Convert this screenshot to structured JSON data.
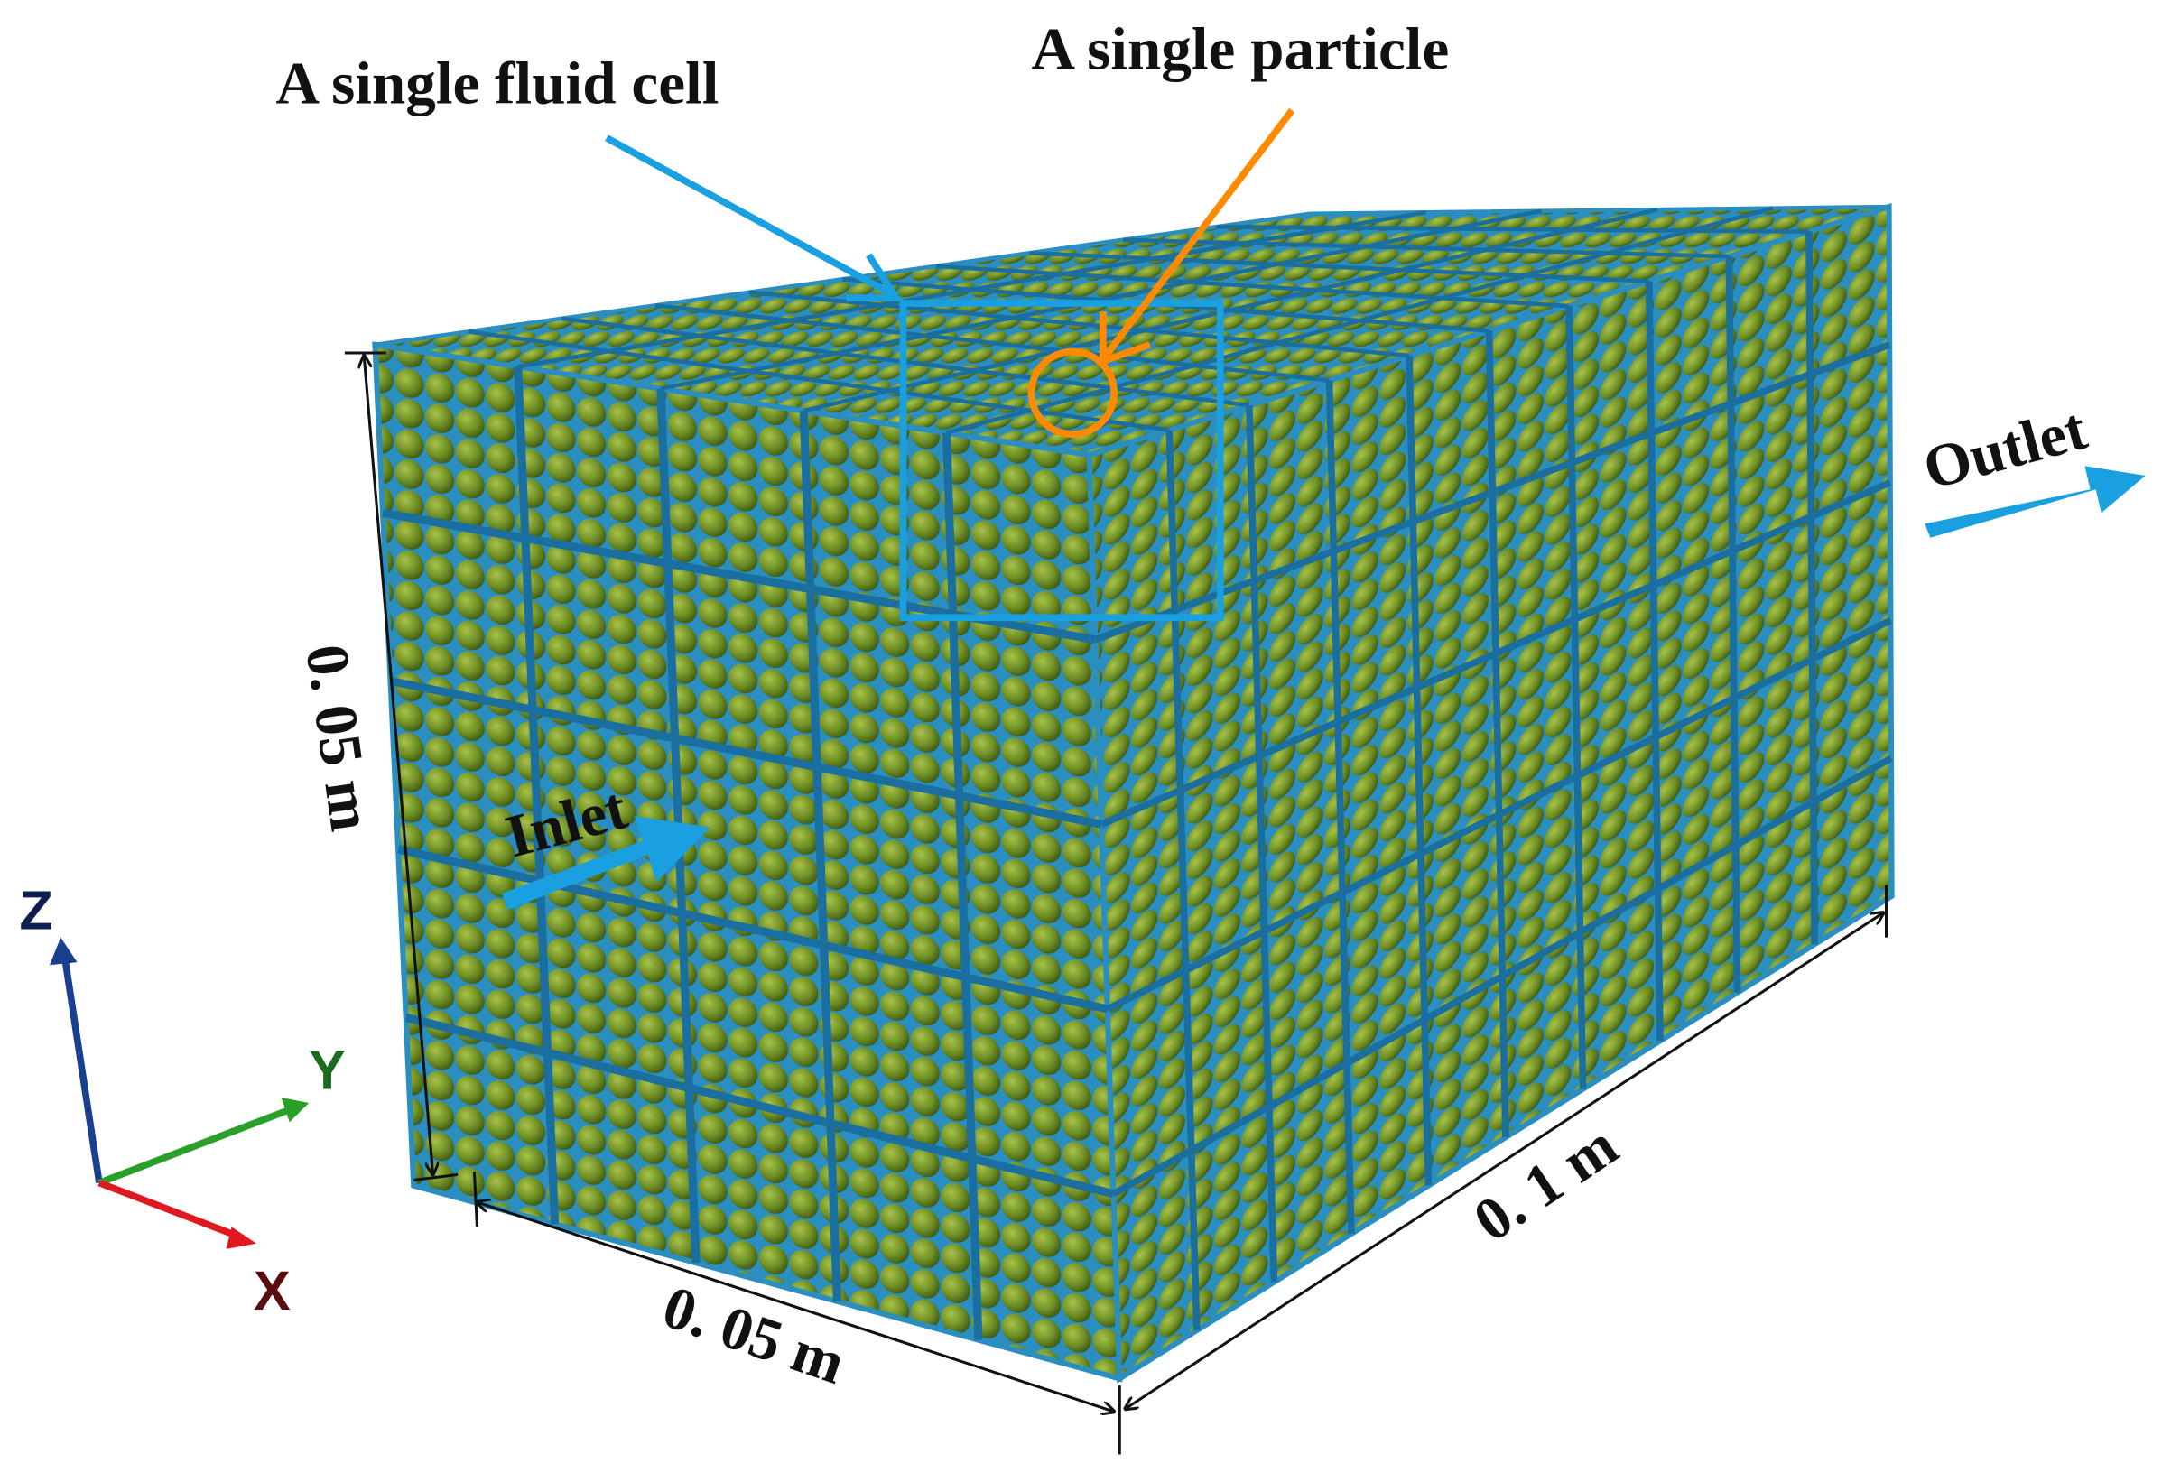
{
  "labels": {
    "fluid_cell": "A single fluid cell",
    "particle": "A single particle",
    "outlet": "Outlet",
    "inlet": "Inlet",
    "height": "0. 05 m",
    "width": "0. 05 m",
    "length": "0. 1 m"
  },
  "axes": {
    "z": "Z",
    "y": "Y",
    "x": "X"
  }
}
